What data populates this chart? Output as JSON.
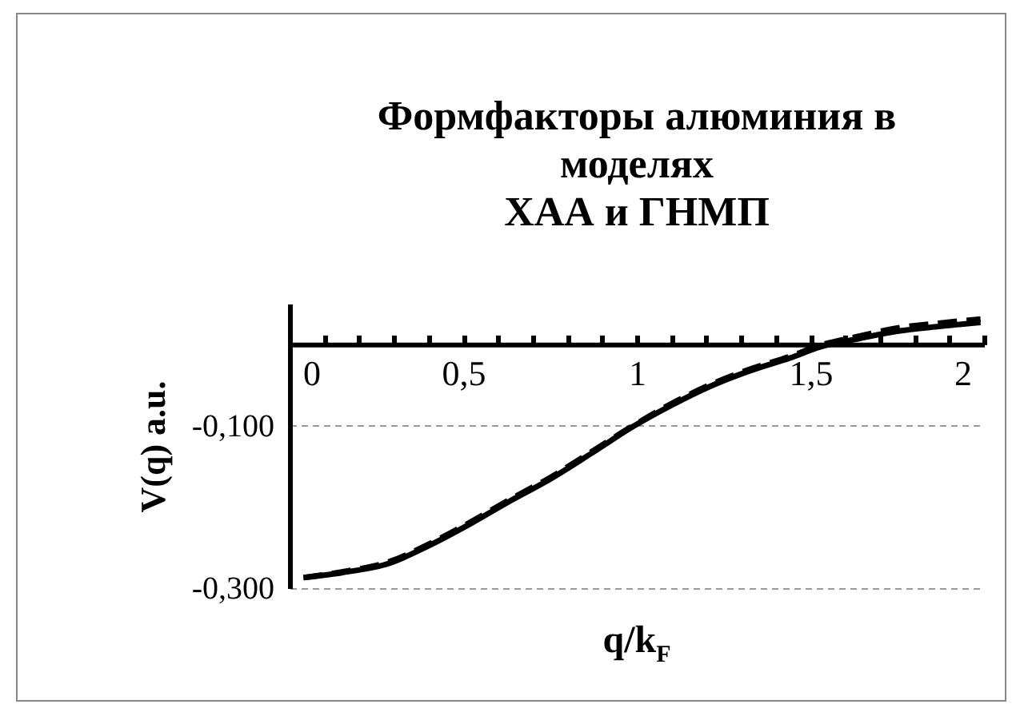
{
  "chart_data": {
    "type": "line",
    "title": "Формфакторы алюминия в моделях\nХАА и ГНМП",
    "xlabel": "q/k$_{F}$",
    "ylabel": "V(q)  a.u.",
    "xlim": [
      0,
      2
    ],
    "ylim": [
      -0.3,
      0.05
    ],
    "xticks": [
      0,
      {
        "value": 0.1,
        "label": null
      },
      {
        "value": 0.2,
        "label": null
      },
      {
        "value": 0.3,
        "label": null
      },
      {
        "value": 0.4,
        "label": null
      },
      {
        "value": 0.5,
        "label": "0,5"
      },
      {
        "value": 0.6,
        "label": null
      },
      {
        "value": 0.7,
        "label": null
      },
      {
        "value": 0.8,
        "label": null
      },
      {
        "value": 0.9,
        "label": null
      },
      1,
      {
        "value": 1.1,
        "label": null
      },
      {
        "value": 1.2,
        "label": null
      },
      {
        "value": 1.3,
        "label": null
      },
      {
        "value": 1.4,
        "label": null
      },
      {
        "value": 1.5,
        "label": "1,5"
      },
      {
        "value": 1.6,
        "label": null
      },
      {
        "value": 1.7,
        "label": null
      },
      {
        "value": 1.8,
        "label": null
      },
      {
        "value": 1.9,
        "label": null
      },
      2
    ],
    "yticks": [
      {
        "value": -0.1,
        "label": "-0,100"
      },
      {
        "value": -0.3,
        "label": "-0,300"
      }
    ],
    "grid": "y",
    "legend": false,
    "x": [
      0.04,
      0.15,
      0.29,
      0.4,
      0.52,
      0.63,
      0.75,
      0.87,
      0.99,
      1.1,
      1.21,
      1.33,
      1.44,
      1.53,
      1.64,
      1.75,
      1.87,
      1.99
    ],
    "series": [
      {
        "color": "#000000",
        "line_style": "solid",
        "values": [
          -0.287,
          -0.281,
          -0.269,
          -0.248,
          -0.221,
          -0.194,
          -0.166,
          -0.134,
          -0.101,
          -0.075,
          -0.052,
          -0.032,
          -0.017,
          -0.003,
          0.007,
          0.016,
          0.022,
          0.027
        ]
      },
      {
        "color": "#000000",
        "line_style": "dashed",
        "values": [
          -0.287,
          -0.28,
          -0.267,
          -0.246,
          -0.219,
          -0.192,
          -0.164,
          -0.132,
          -0.1,
          -0.073,
          -0.05,
          -0.03,
          -0.015,
          -0.001,
          0.01,
          0.02,
          0.026,
          0.031
        ]
      }
    ]
  }
}
